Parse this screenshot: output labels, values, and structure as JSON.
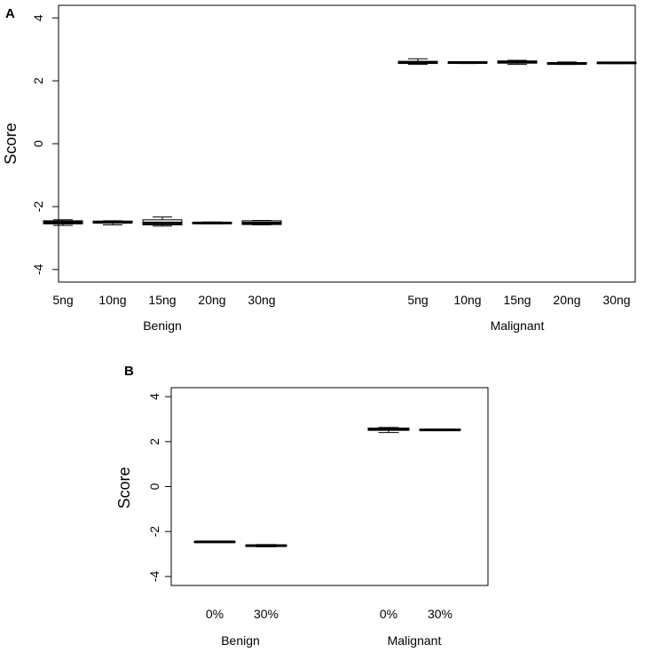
{
  "chart_data": [
    {
      "type": "boxplot",
      "panel_label": "A",
      "ylabel": "Score",
      "ylim": [
        -4.4,
        4.4
      ],
      "yticks": [
        -4,
        -2,
        0,
        2,
        4
      ],
      "grid": false,
      "groups": [
        {
          "name": "Benign",
          "categories": [
            "5ng",
            "10ng",
            "15ng",
            "20ng",
            "30ng"
          ],
          "boxes": [
            {
              "min": -2.6,
              "q1": -2.55,
              "median": -2.5,
              "q3": -2.45,
              "max": -2.42
            },
            {
              "min": -2.58,
              "q1": -2.52,
              "median": -2.5,
              "q3": -2.46,
              "max": -2.45
            },
            {
              "min": -2.62,
              "q1": -2.58,
              "median": -2.52,
              "q3": -2.42,
              "max": -2.33
            },
            {
              "min": -2.55,
              "q1": -2.54,
              "median": -2.52,
              "q3": -2.5,
              "max": -2.49
            },
            {
              "min": -2.58,
              "q1": -2.57,
              "median": -2.52,
              "q3": -2.45,
              "max": -2.44
            }
          ]
        },
        {
          "name": "Malignant",
          "categories": [
            "5ng",
            "10ng",
            "15ng",
            "20ng",
            "30ng"
          ],
          "boxes": [
            {
              "min": 2.52,
              "q1": 2.55,
              "median": 2.58,
              "q3": 2.62,
              "max": 2.7
            },
            {
              "min": 2.55,
              "q1": 2.56,
              "median": 2.58,
              "q3": 2.6,
              "max": 2.61
            },
            {
              "min": 2.52,
              "q1": 2.56,
              "median": 2.6,
              "q3": 2.63,
              "max": 2.65
            },
            {
              "min": 2.52,
              "q1": 2.53,
              "median": 2.55,
              "q3": 2.58,
              "max": 2.6
            },
            {
              "min": 2.55,
              "q1": 2.56,
              "median": 2.57,
              "q3": 2.58,
              "max": 2.59
            }
          ]
        }
      ]
    },
    {
      "type": "boxplot",
      "panel_label": "B",
      "ylabel": "Score",
      "ylim": [
        -4.4,
        4.4
      ],
      "yticks": [
        -4,
        -2,
        0,
        2,
        4
      ],
      "grid": false,
      "groups": [
        {
          "name": "Benign",
          "categories": [
            "0%",
            "30%"
          ],
          "boxes": [
            {
              "min": -2.48,
              "q1": -2.47,
              "median": -2.46,
              "q3": -2.44,
              "max": -2.43
            },
            {
              "min": -2.68,
              "q1": -2.66,
              "median": -2.63,
              "q3": -2.6,
              "max": -2.58
            }
          ]
        },
        {
          "name": "Malignant",
          "categories": [
            "0%",
            "30%"
          ],
          "boxes": [
            {
              "min": 2.4,
              "q1": 2.5,
              "median": 2.55,
              "q3": 2.6,
              "max": 2.63
            },
            {
              "min": 2.5,
              "q1": 2.51,
              "median": 2.52,
              "q3": 2.54,
              "max": 2.55
            }
          ]
        }
      ]
    }
  ]
}
